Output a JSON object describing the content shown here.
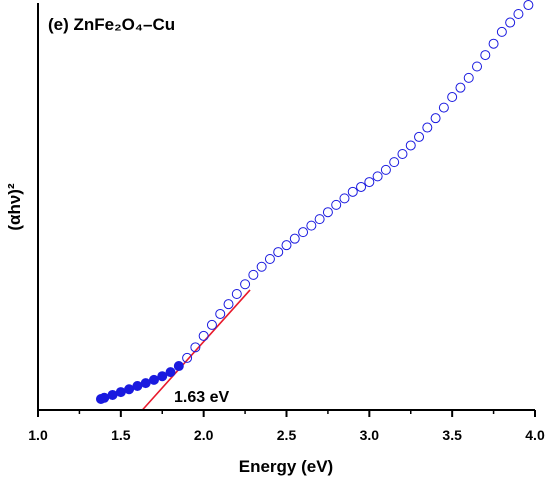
{
  "chart_data": {
    "type": "scatter",
    "title": "(e) ZnFe₂O₄–Cu",
    "x_label": "Energy (eV)",
    "y_label": "(αhν)²",
    "xlim": [
      1.0,
      4.0
    ],
    "ylim": [
      0,
      100
    ],
    "xticks": [
      {
        "value": 1.0,
        "label": "1.0"
      },
      {
        "value": 1.5,
        "label": "1.5"
      },
      {
        "value": 2.0,
        "label": "2.0"
      },
      {
        "value": 2.5,
        "label": "2.5"
      },
      {
        "value": 3.0,
        "label": "3.0"
      },
      {
        "value": 3.5,
        "label": "3.5"
      },
      {
        "value": 4.0,
        "label": "4.0"
      }
    ],
    "xminor_ticks": [
      1.25,
      1.75,
      2.25,
      2.75,
      3.25,
      3.75
    ],
    "series": [
      {
        "color": "#1a1adf",
        "x": [
          1.38,
          1.4,
          1.45,
          1.5,
          1.55,
          1.6,
          1.65,
          1.7,
          1.75,
          1.8,
          1.85,
          1.9,
          1.95,
          2.0,
          2.05,
          2.1,
          2.15,
          2.2,
          2.25,
          2.3,
          2.35,
          2.4,
          2.45,
          2.5,
          2.55,
          2.6,
          2.65,
          2.7,
          2.75,
          2.8,
          2.85,
          2.9,
          2.95,
          3.0,
          3.05,
          3.1,
          3.15,
          3.2,
          3.25,
          3.3,
          3.35,
          3.4,
          3.45,
          3.5,
          3.55,
          3.6,
          3.65,
          3.7,
          3.75,
          3.8,
          3.85,
          3.9,
          3.96
        ],
        "values": [
          2.7,
          3.0,
          3.7,
          4.4,
          5.1,
          5.9,
          6.6,
          7.4,
          8.3,
          9.3,
          10.8,
          12.8,
          15.4,
          18.2,
          20.9,
          23.6,
          26.0,
          28.5,
          30.9,
          33.2,
          35.2,
          37.1,
          38.8,
          40.5,
          42.1,
          43.7,
          45.3,
          46.9,
          48.6,
          50.4,
          52.0,
          53.6,
          54.8,
          56.0,
          57.4,
          59.0,
          60.9,
          62.9,
          65.0,
          67.1,
          69.4,
          71.7,
          74.3,
          76.9,
          79.2,
          81.6,
          84.4,
          87.2,
          90.0,
          92.9,
          95.2,
          97.3,
          99.5
        ]
      }
    ],
    "fit_line": {
      "color": "#e8192c",
      "x": [
        1.63,
        2.28
      ],
      "values": [
        0,
        29.5
      ]
    },
    "annotation": "1.63 eV"
  }
}
